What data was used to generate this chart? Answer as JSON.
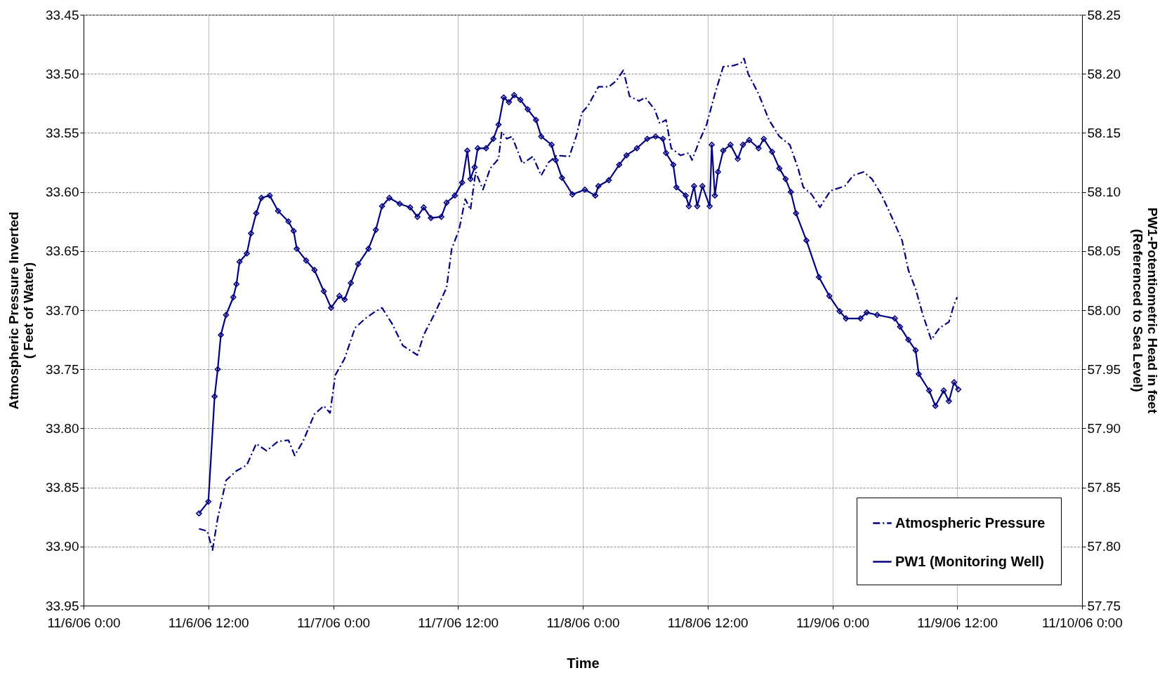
{
  "chart_data": {
    "type": "line",
    "xlabel": "Time",
    "ylabel": "Atmospheric Pressure Inverted ( Feet of Water)",
    "y2label": "PW1-Potentiometric Head in feet (Referenced to Sea Level)",
    "xlim": [
      "--11-06T00:00",
      "--11-10T00:00"
    ],
    "xticks": [
      {
        "value": "--11-06T00:00",
        "label": "11/6/06 0:00"
      },
      {
        "value": "--11-06T12:00",
        "label": "11/6/06 12:00"
      },
      {
        "value": "--11-07T00:00",
        "label": "11/7/06 0:00"
      },
      {
        "value": "--11-07T12:00",
        "label": "11/7/06 12:00"
      },
      {
        "value": "--11-08T00:00",
        "label": "11/8/06 0:00"
      },
      {
        "value": "--11-08T12:00",
        "label": "11/8/06 12:00"
      },
      {
        "value": "--11-09T00:00",
        "label": "11/9/06 0:00"
      },
      {
        "value": "--11-09T12:00",
        "label": "11/9/06 12:00"
      },
      {
        "value": "--11-10T00:00",
        "label": "11/10/06 0:00"
      }
    ],
    "ylim": [
      33.95,
      33.45
    ],
    "yticks": [
      {
        "value": 33.45,
        "label": "33.45"
      },
      {
        "value": 33.5,
        "label": "33.50"
      },
      {
        "value": 33.55,
        "label": "33.55"
      },
      {
        "value": 33.6,
        "label": "33.60"
      },
      {
        "value": 33.65,
        "label": "33.65"
      },
      {
        "value": 33.7,
        "label": "33.70"
      },
      {
        "value": 33.75,
        "label": "33.75"
      },
      {
        "value": 33.8,
        "label": "33.80"
      },
      {
        "value": 33.85,
        "label": "33.85"
      },
      {
        "value": 33.9,
        "label": "33.90"
      },
      {
        "value": 33.95,
        "label": "33.95"
      }
    ],
    "y2lim": [
      57.75,
      58.25
    ],
    "y2ticks": [
      {
        "value": 57.75,
        "label": "57.75"
      },
      {
        "value": 57.8,
        "label": "57.80"
      },
      {
        "value": 57.85,
        "label": "57.85"
      },
      {
        "value": 57.9,
        "label": "57.90"
      },
      {
        "value": 57.95,
        "label": "57.95"
      },
      {
        "value": 58.0,
        "label": "58.00"
      },
      {
        "value": 58.05,
        "label": "58.05"
      },
      {
        "value": 58.1,
        "label": "58.10"
      },
      {
        "value": 58.15,
        "label": "58.15"
      },
      {
        "value": 58.2,
        "label": "58.20"
      },
      {
        "value": 58.25,
        "label": "58.25"
      }
    ],
    "grid": true,
    "legend": "bottom right",
    "series": [
      {
        "name": "Atmospheric Pressure",
        "color": "#000080",
        "line_style": "dashdot",
        "marker": "none",
        "x": [
          "--11-06T11:06",
          "--11-06T11:54",
          "--11-06T12:24",
          "--11-06T12:54",
          "--11-06T13:42",
          "--11-06T14:42",
          "--11-06T15:42",
          "--11-06T16:36",
          "--11-06T17:36",
          "--11-06T18:42",
          "--11-06T19:42",
          "--11-06T20:18",
          "--11-06T21:06",
          "--11-06T22:12",
          "--11-06T23:06",
          "--11-06T23:42",
          "--11-07T00:12",
          "--11-07T01:06",
          "--11-07T02:06",
          "--11-07T03:06",
          "--11-07T03:54",
          "--11-07T04:42",
          "--11-07T05:42",
          "--11-07T06:42",
          "--11-07T08:06",
          "--11-07T08:42",
          "--11-07T09:42",
          "--11-07T10:54",
          "--11-07T11:24",
          "--11-07T12:06",
          "--11-07T12:42",
          "--11-07T13:12",
          "--11-07T13:42",
          "--11-07T14:24",
          "--11-07T15:06",
          "--11-07T15:54",
          "--11-07T16:12",
          "--11-07T16:42",
          "--11-07T17:12",
          "--11-07T18:12",
          "--11-07T19:12",
          "--11-07T20:00",
          "--11-07T20:42",
          "--11-07T21:30",
          "--11-07T22:42",
          "--11-07T23:24",
          "--11-07T23:54",
          "--11-08T00:30",
          "--11-08T01:30",
          "--11-08T02:30",
          "--11-08T03:12",
          "--11-08T03:54",
          "--11-08T04:30",
          "--11-08T05:24",
          "--11-08T06:00",
          "--11-08T06:54",
          "--11-08T07:24",
          "--11-08T08:00",
          "--11-08T08:30",
          "--11-08T09:24",
          "--11-08T10:12",
          "--11-08T10:30",
          "--11-08T11:12",
          "--11-08T11:54",
          "--11-08T12:42",
          "--11-08T13:30",
          "--11-08T14:30",
          "--11-08T15:12",
          "--11-08T15:30",
          "--11-08T15:54",
          "--11-08T16:54",
          "--11-08T17:54",
          "--11-08T18:54",
          "--11-08T19:54",
          "--11-08T20:42",
          "--11-08T21:12",
          "--11-08T22:00",
          "--11-08T22:48",
          "--11-08T23:48",
          "--11-09T01:12",
          "--11-09T02:00",
          "--11-09T03:00",
          "--11-09T03:48",
          "--11-09T04:42",
          "--11-09T05:42",
          "--11-09T06:42",
          "--11-09T07:18",
          "--11-09T08:00",
          "--11-09T08:42",
          "--11-09T09:30",
          "--11-09T10:18",
          "--11-09T11:12",
          "--11-09T11:42",
          "--11-09T12:00"
        ],
        "values": [
          33.885,
          33.887,
          33.903,
          33.876,
          33.844,
          33.836,
          33.831,
          33.813,
          33.819,
          33.811,
          33.81,
          33.823,
          33.811,
          33.788,
          33.781,
          33.787,
          33.755,
          33.741,
          33.715,
          33.707,
          33.702,
          33.698,
          33.712,
          33.73,
          33.738,
          33.721,
          33.704,
          33.681,
          33.648,
          33.632,
          33.606,
          33.615,
          33.583,
          33.598,
          33.58,
          33.572,
          33.549,
          33.555,
          33.553,
          33.576,
          33.57,
          33.586,
          33.575,
          33.569,
          33.57,
          33.552,
          33.533,
          33.527,
          33.511,
          33.511,
          33.506,
          33.497,
          33.519,
          33.523,
          33.52,
          33.53,
          33.542,
          33.539,
          33.563,
          33.569,
          33.567,
          33.573,
          33.557,
          33.543,
          33.517,
          33.494,
          33.493,
          33.491,
          33.487,
          33.5,
          33.517,
          33.539,
          33.553,
          33.56,
          33.58,
          33.596,
          33.602,
          33.613,
          33.599,
          33.595,
          33.586,
          33.583,
          33.589,
          33.602,
          33.621,
          33.641,
          33.666,
          33.682,
          33.704,
          33.725,
          33.715,
          33.71,
          33.695,
          33.689
        ]
      },
      {
        "name": "PW1 (Monitoring Well)",
        "color": "#000080",
        "line_style": "solid",
        "marker": "diamond",
        "axis": "y2",
        "x": [
          "--11-06T11:06",
          "--11-06T12:00",
          "--11-06T12:36",
          "--11-06T12:54",
          "--11-06T13:12",
          "--11-06T13:42",
          "--11-06T14:24",
          "--11-06T14:42",
          "--11-06T15:00",
          "--11-06T15:42",
          "--11-06T16:06",
          "--11-06T16:36",
          "--11-06T17:06",
          "--11-06T17:54",
          "--11-06T18:42",
          "--11-06T19:42",
          "--11-06T20:12",
          "--11-06T20:30",
          "--11-06T21:24",
          "--11-06T22:12",
          "--11-06T23:06",
          "--11-06T23:48",
          "--11-07T00:36",
          "--11-07T01:06",
          "--11-07T01:42",
          "--11-07T02:24",
          "--11-07T03:24",
          "--11-07T04:06",
          "--11-07T04:42",
          "--11-07T05:24",
          "--11-07T06:24",
          "--11-07T07:24",
          "--11-07T08:06",
          "--11-07T08:42",
          "--11-07T09:24",
          "--11-07T10:24",
          "--11-07T10:54",
          "--11-07T11:42",
          "--11-07T12:24",
          "--11-07T12:54",
          "--11-07T13:12",
          "--11-07T13:36",
          "--11-07T13:54",
          "--11-07T14:42",
          "--11-07T15:24",
          "--11-07T15:54",
          "--11-07T16:24",
          "--11-07T16:54",
          "--11-07T17:24",
          "--11-07T18:00",
          "--11-07T18:42",
          "--11-07T19:30",
          "--11-07T20:00",
          "--11-07T21:00",
          "--11-07T21:24",
          "--11-07T22:00",
          "--11-07T23:00",
          "--11-08T00:12",
          "--11-08T01:12",
          "--11-08T01:30",
          "--11-08T02:30",
          "--11-08T03:30",
          "--11-08T04:12",
          "--11-08T05:12",
          "--11-08T06:12",
          "--11-08T07:00",
          "--11-08T07:42",
          "--11-08T08:00",
          "--11-08T08:42",
          "--11-08T09:00",
          "--11-08T09:54",
          "--11-08T10:12",
          "--11-08T10:42",
          "--11-08T11:00",
          "--11-08T11:30",
          "--11-08T12:12",
          "--11-08T12:24",
          "--11-08T12:42",
          "--11-08T13:00",
          "--11-08T13:30",
          "--11-08T14:12",
          "--11-08T14:54",
          "--11-08T15:24",
          "--11-08T16:00",
          "--11-08T16:54",
          "--11-08T17:24",
          "--11-08T18:12",
          "--11-08T18:54",
          "--11-08T19:30",
          "--11-08T20:00",
          "--11-08T20:30",
          "--11-08T21:30",
          "--11-08T22:42",
          "--11-08T23:42",
          "--11-09T00:42",
          "--11-09T01:18",
          "--11-09T02:42",
          "--11-09T03:18",
          "--11-09T04:18",
          "--11-09T06:00",
          "--11-09T06:30",
          "--11-09T07:18",
          "--11-09T08:00",
          "--11-09T08:18",
          "--11-09T09:18",
          "--11-09T09:54",
          "--11-09T10:42",
          "--11-09T11:12",
          "--11-09T11:42",
          "--11-09T12:06"
        ],
        "values": [
          57.828,
          57.838,
          57.927,
          57.95,
          57.979,
          57.996,
          58.011,
          58.022,
          58.041,
          58.048,
          58.065,
          58.082,
          58.095,
          58.097,
          58.084,
          58.075,
          58.067,
          58.052,
          58.042,
          58.034,
          58.016,
          58.002,
          58.012,
          58.009,
          58.023,
          58.039,
          58.052,
          58.068,
          58.088,
          58.095,
          58.09,
          58.087,
          58.079,
          58.087,
          58.078,
          58.079,
          58.091,
          58.097,
          58.108,
          58.135,
          58.111,
          58.121,
          58.137,
          58.137,
          58.145,
          58.157,
          58.18,
          58.176,
          58.182,
          58.178,
          58.17,
          58.161,
          58.147,
          58.14,
          58.127,
          58.112,
          58.098,
          58.102,
          58.097,
          58.105,
          58.11,
          58.123,
          58.131,
          58.137,
          58.145,
          58.147,
          58.145,
          58.133,
          58.123,
          58.104,
          58.097,
          58.088,
          58.105,
          58.088,
          58.105,
          58.088,
          58.14,
          58.097,
          58.117,
          58.135,
          58.14,
          58.128,
          58.14,
          58.144,
          58.137,
          58.145,
          58.134,
          58.12,
          58.111,
          58.1,
          58.082,
          58.059,
          58.028,
          58.012,
          57.999,
          57.993,
          57.993,
          57.998,
          57.996,
          57.993,
          57.986,
          57.975,
          57.966,
          57.946,
          57.932,
          57.919,
          57.932,
          57.923,
          57.939,
          57.933
        ]
      }
    ]
  }
}
